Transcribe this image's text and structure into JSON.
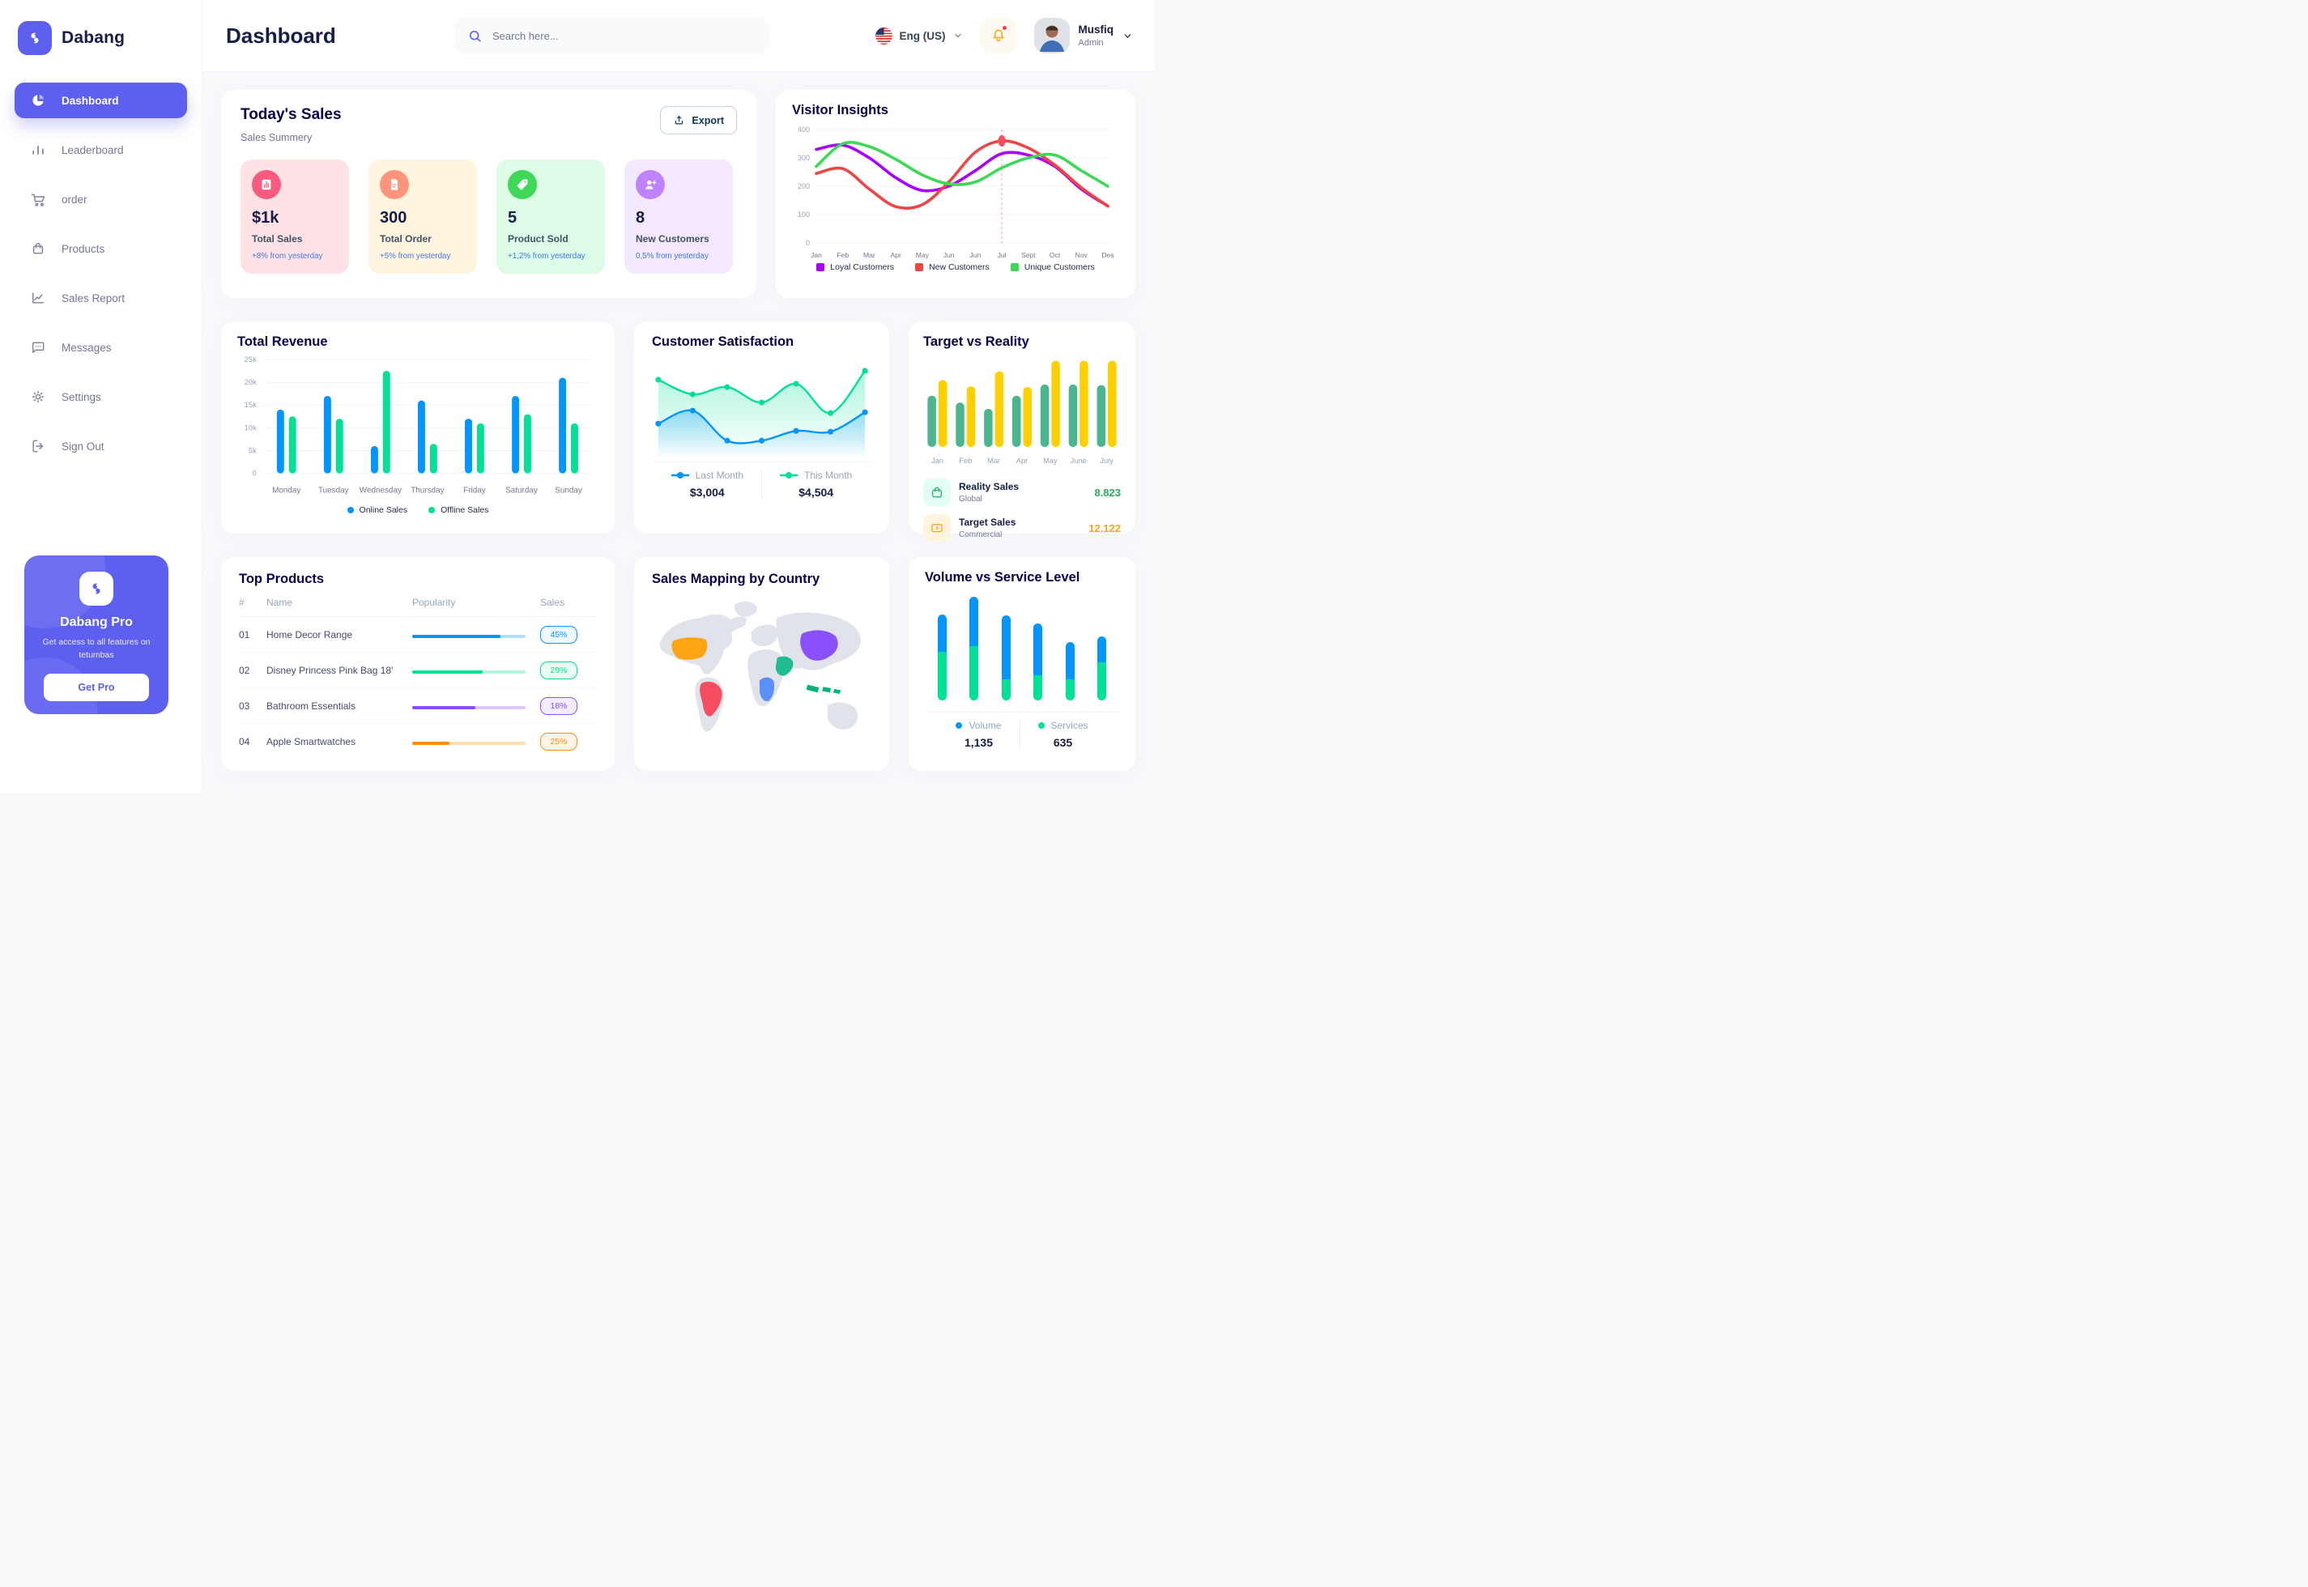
{
  "brand": {
    "name": "Dabang"
  },
  "header": {
    "title": "Dashboard",
    "search_placeholder": "Search here...",
    "language": "Eng (US)",
    "user_name": "Musfiq",
    "user_role": "Admin"
  },
  "sidebar": {
    "items": [
      {
        "label": "Dashboard",
        "icon": "pie-chart",
        "active": true
      },
      {
        "label": "Leaderboard",
        "icon": "bar-chart",
        "active": false
      },
      {
        "label": "order",
        "icon": "cart",
        "active": false
      },
      {
        "label": "Products",
        "icon": "bag",
        "active": false
      },
      {
        "label": "Sales Report",
        "icon": "line-chart",
        "active": false
      },
      {
        "label": "Messages",
        "icon": "message",
        "active": false
      },
      {
        "label": "Settings",
        "icon": "gear",
        "active": false
      },
      {
        "label": "Sign Out",
        "icon": "sign-out",
        "active": false
      }
    ],
    "promo": {
      "title": "Dabang Pro",
      "text": "Get access to all features on tetumbas",
      "button": "Get Pro"
    }
  },
  "today_sales": {
    "title": "Today's Sales",
    "subtitle": "Sales Summery",
    "export_label": "Export",
    "stats": [
      {
        "value": "$1k",
        "label": "Total Sales",
        "change": "+8% from yesterday",
        "bg": "#FFE2E5",
        "icon_bg": "#FA5A7D",
        "icon": "stat-chart"
      },
      {
        "value": "300",
        "label": "Total Order",
        "change": "+5% from yesterday",
        "bg": "#FFF4DE",
        "icon_bg": "#FF947A",
        "icon": "stat-receipt"
      },
      {
        "value": "5",
        "label": "Product Sold",
        "change": "+1,2% from yesterday",
        "bg": "#DCFCE7",
        "icon_bg": "#3CD856",
        "icon": "stat-tag"
      },
      {
        "value": "8",
        "label": "New Customers",
        "change": "0,5% from yesterday",
        "bg": "#F3E8FF",
        "icon_bg": "#BF83FF",
        "icon": "stat-user"
      }
    ]
  },
  "top_products": {
    "title": "Top Products",
    "headers": [
      "#",
      "Name",
      "Popularity",
      "Sales"
    ],
    "rows": [
      {
        "num": "01",
        "name": "Home Decor Range",
        "bar_percent": 78,
        "sales": "45%",
        "color": "#0095FF",
        "badge_bg": "#EFF8FF"
      },
      {
        "num": "02",
        "name": "Disney Princess Pink Bag 18'",
        "bar_percent": 62,
        "sales": "29%",
        "color": "#00E096",
        "badge_bg": "#EAFDF3"
      },
      {
        "num": "03",
        "name": "Bathroom Essentials",
        "bar_percent": 56,
        "sales": "18%",
        "color": "#884DFF",
        "badge_bg": "#F3ECFE"
      },
      {
        "num": "04",
        "name": "Apple Smartwatches",
        "bar_percent": 33,
        "sales": "25%",
        "color": "#FF8F0D",
        "badge_bg": "#FFF4E5"
      }
    ]
  },
  "sales_map": {
    "title": "Sales Mapping by Country",
    "countries": [
      {
        "name": "United States",
        "color": "#FFA412"
      },
      {
        "name": "Brazil",
        "color": "#F64E60"
      },
      {
        "name": "DR Congo",
        "color": "#5B8FF9"
      },
      {
        "name": "Saudi Arabia",
        "color": "#1FBC8F"
      },
      {
        "name": "China",
        "color": "#8950FC"
      },
      {
        "name": "Indonesia",
        "color": "#00B574"
      }
    ]
  },
  "chart_data": [
    {
      "id": "visitor_insights",
      "type": "line",
      "title": "Visitor Insights",
      "categories": [
        "Jan",
        "Feb",
        "Mar",
        "Apr",
        "May",
        "Jun",
        "Jun",
        "Jul",
        "Sept",
        "Oct",
        "Nov",
        "Des"
      ],
      "ylim": [
        0,
        400
      ],
      "yticks": [
        0,
        100,
        200,
        300,
        400
      ],
      "grid": true,
      "legend_position": "bottom",
      "series": [
        {
          "name": "Loyal Customers",
          "color": "#A700FF",
          "values": [
            330,
            345,
            300,
            230,
            185,
            200,
            255,
            315,
            310,
            270,
            190,
            130
          ]
        },
        {
          "name": "New Customers",
          "color": "#EF4444",
          "values": [
            245,
            262,
            190,
            128,
            135,
            215,
            320,
            360,
            335,
            275,
            195,
            130
          ]
        },
        {
          "name": "Unique Customers",
          "color": "#3CD856",
          "values": [
            270,
            350,
            340,
            295,
            240,
            208,
            215,
            265,
            300,
            310,
            255,
            200
          ]
        }
      ],
      "marker": {
        "series": 1,
        "index": 7
      }
    },
    {
      "id": "total_revenue",
      "type": "bar",
      "title": "Total Revenue",
      "categories": [
        "Monday",
        "Tuesday",
        "Wednesday",
        "Thursday",
        "Friday",
        "Saturday",
        "Sunday"
      ],
      "ylim": [
        0,
        25
      ],
      "ytick_labels": [
        "0",
        "5k",
        "10k",
        "15k",
        "20k",
        "25k"
      ],
      "grid": true,
      "legend_position": "bottom",
      "series": [
        {
          "name": "Online Sales",
          "color": "#0095FF",
          "values": [
            14,
            17,
            6,
            16,
            12,
            17,
            21
          ]
        },
        {
          "name": "Offline Sales",
          "color": "#00E096",
          "values": [
            12.5,
            12,
            22.5,
            6.5,
            11,
            13,
            11
          ]
        }
      ]
    },
    {
      "id": "customer_satisfaction",
      "type": "area",
      "title": "Customer Satisfaction",
      "ylim": [
        0,
        110
      ],
      "legend_position": "bottom",
      "series": [
        {
          "name": "Last Month",
          "color": "#0095FF",
          "total": "$3,004",
          "values": [
            33,
            49,
            12,
            12,
            24,
            23,
            47
          ]
        },
        {
          "name": "This Month",
          "color": "#00E096",
          "total": "$4,504",
          "values": [
            87,
            69,
            78,
            59,
            82,
            46,
            98
          ]
        }
      ]
    },
    {
      "id": "target_vs_reality",
      "type": "bar",
      "title": "Target vs Reality",
      "categories": [
        "Jan",
        "Feb",
        "Mar",
        "Apr",
        "May",
        "June",
        "July"
      ],
      "ylim": [
        0,
        14
      ],
      "series": [
        {
          "name": "Reality Sales",
          "color": "#4AB58E",
          "values": [
            8.2,
            7.1,
            6.1,
            8.2,
            10,
            10,
            9.9
          ]
        },
        {
          "name": "Target Sales",
          "color": "#FFCF00",
          "values": [
            10.7,
            9.7,
            12.1,
            9.6,
            13.8,
            13.8,
            13.8
          ]
        }
      ],
      "legend": [
        {
          "label": "Reality Sales",
          "sublabel": "Global",
          "value": "8.823",
          "value_color": "#27AE60",
          "icon": "bag",
          "icon_bg": "#E2FFF3",
          "icon_color": "#27AE60"
        },
        {
          "label": "Target Sales",
          "sublabel": "Commercial",
          "value": "12.122",
          "value_color": "#FFA412",
          "icon": "ticket",
          "icon_bg": "#FFF4DE",
          "icon_color": "#FFA412"
        }
      ]
    },
    {
      "id": "volume_vs_service",
      "type": "stacked-bar",
      "title": "Volume vs Service Level",
      "legend_position": "bottom",
      "series": [
        {
          "name": "Volume",
          "color": "#0095FF",
          "total": "1,135",
          "values": [
            4.0,
            5.3,
            6.8,
            5.6,
            4.0,
            2.8
          ]
        },
        {
          "name": "Services",
          "color": "#00E096",
          "total": "635",
          "values": [
            5.2,
            5.8,
            2.3,
            2.7,
            2.3,
            4.1
          ]
        }
      ]
    }
  ]
}
